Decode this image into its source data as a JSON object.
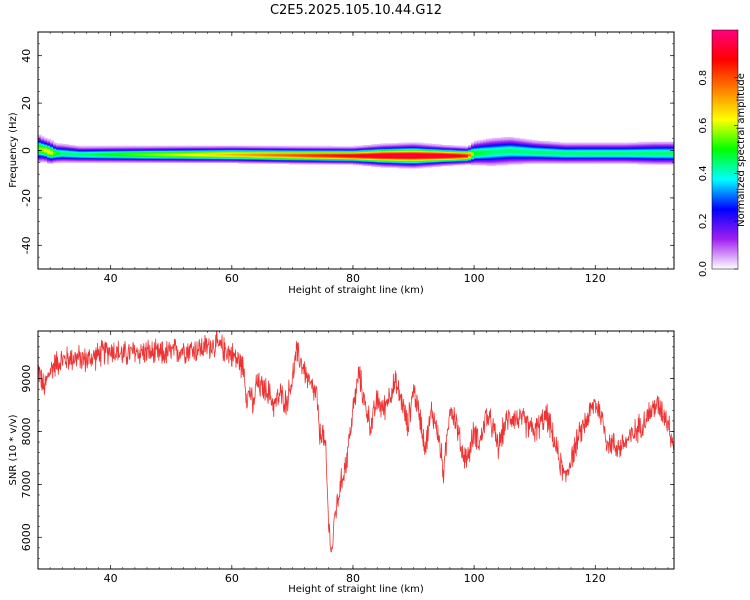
{
  "page": {
    "background": "#ffffff"
  },
  "chart_data": [
    {
      "type": "heatmap",
      "title": "C2E5.2025.105.10.44.G12",
      "xlabel": "Height of straight line (km)",
      "ylabel": "Frequency (Hz)",
      "xlim": [
        28,
        133
      ],
      "ylim": [
        -50,
        50
      ],
      "xticks": [
        40,
        60,
        80,
        100,
        120
      ],
      "yticks": [
        -40,
        -20,
        0,
        20,
        40
      ],
      "colorbar": {
        "label": "Normalized spectral amplitude",
        "range": [
          0.0,
          1.0
        ],
        "ticks": [
          0.0,
          0.2,
          0.4,
          0.6,
          0.8
        ],
        "tick_labels": [
          "0.0",
          "0.2",
          "0.4",
          "0.6",
          "0.8"
        ],
        "colormap": [
          "#ffffff",
          "#a020f0",
          "#0000ff",
          "#00ffff",
          "#00ff00",
          "#ffff00",
          "#ff8000",
          "#ff0000",
          "#ff0080"
        ]
      },
      "ridge": {
        "description_units": "Hz",
        "x": [
          28,
          29,
          30,
          31,
          32,
          35,
          40,
          50,
          60,
          70,
          80,
          85,
          90,
          95,
          99,
          100,
          103,
          106,
          110,
          115,
          120,
          125,
          130,
          133
        ],
        "center_freq": [
          1.0,
          0.5,
          -0.5,
          -1.0,
          -1.0,
          -1.5,
          -1.5,
          -1.5,
          -1.5,
          -1.8,
          -2.0,
          -2.0,
          -2.0,
          -2.0,
          -2.0,
          -1.0,
          -0.5,
          0.0,
          -0.5,
          -1.0,
          -1.0,
          -1.0,
          -1.0,
          -1.0
        ],
        "peak_amplitude": [
          0.55,
          0.6,
          0.65,
          0.5,
          0.45,
          0.45,
          0.5,
          0.6,
          0.7,
          0.8,
          0.9,
          0.95,
          0.95,
          0.95,
          0.85,
          0.5,
          0.45,
          0.45,
          0.45,
          0.45,
          0.45,
          0.45,
          0.45,
          0.45
        ],
        "half_width_hz": [
          6,
          5,
          5,
          4,
          4,
          3.5,
          3.5,
          3.5,
          3.5,
          3.5,
          3.5,
          4.5,
          5,
          4,
          3.5,
          5,
          6,
          6,
          5,
          4.5,
          4.5,
          4.5,
          5,
          5
        ]
      }
    },
    {
      "type": "line",
      "title": "",
      "xlabel": "Height of straight line (km)",
      "ylabel": "SNR (10 * v/v)",
      "xlim": [
        28,
        133
      ],
      "ylim": [
        5400,
        9900
      ],
      "xticks": [
        40,
        60,
        80,
        100,
        120
      ],
      "yticks": [
        6000,
        7000,
        8000,
        9000
      ],
      "series": [
        {
          "color": "#ee3333",
          "x": [
            28,
            29,
            30,
            31,
            32,
            34,
            36,
            38,
            40,
            42,
            44,
            46,
            48,
            50,
            52,
            54,
            56,
            57,
            58,
            59,
            60,
            61,
            62,
            62.5,
            63,
            63.5,
            64,
            66,
            67,
            68,
            69,
            70,
            70.7,
            71.5,
            72.5,
            73,
            74,
            74.5,
            75,
            75.5,
            76,
            76.5,
            77,
            78,
            79,
            80,
            81,
            82,
            83,
            84,
            85,
            86,
            87,
            88,
            89,
            90,
            91,
            92,
            93,
            94,
            95,
            96,
            97,
            98,
            99,
            100,
            101,
            102,
            103,
            104,
            105,
            106,
            108,
            110,
            112,
            113,
            114,
            115,
            116,
            118,
            120,
            121,
            122,
            124,
            126,
            128,
            130,
            131,
            132,
            133
          ],
          "values": [
            9200,
            8800,
            9150,
            9300,
            9350,
            9400,
            9350,
            9450,
            9550,
            9450,
            9500,
            9500,
            9450,
            9500,
            9550,
            9550,
            9600,
            9650,
            9600,
            9550,
            9450,
            9350,
            9200,
            8600,
            8800,
            8400,
            8900,
            8750,
            8500,
            8700,
            8550,
            9000,
            9500,
            9300,
            9000,
            8850,
            8700,
            7900,
            8000,
            7600,
            6200,
            5700,
            6400,
            7000,
            7500,
            8400,
            9100,
            8500,
            8100,
            8600,
            8400,
            8700,
            8900,
            8600,
            8100,
            8800,
            8300,
            7700,
            8400,
            8000,
            7200,
            8500,
            8200,
            7600,
            7500,
            8000,
            7800,
            8300,
            8100,
            7700,
            8100,
            8300,
            8200,
            8000,
            8300,
            7900,
            7500,
            7100,
            7500,
            8100,
            8550,
            8300,
            7800,
            7700,
            7900,
            8200,
            8500,
            8400,
            8200,
            7700
          ]
        }
      ]
    }
  ]
}
